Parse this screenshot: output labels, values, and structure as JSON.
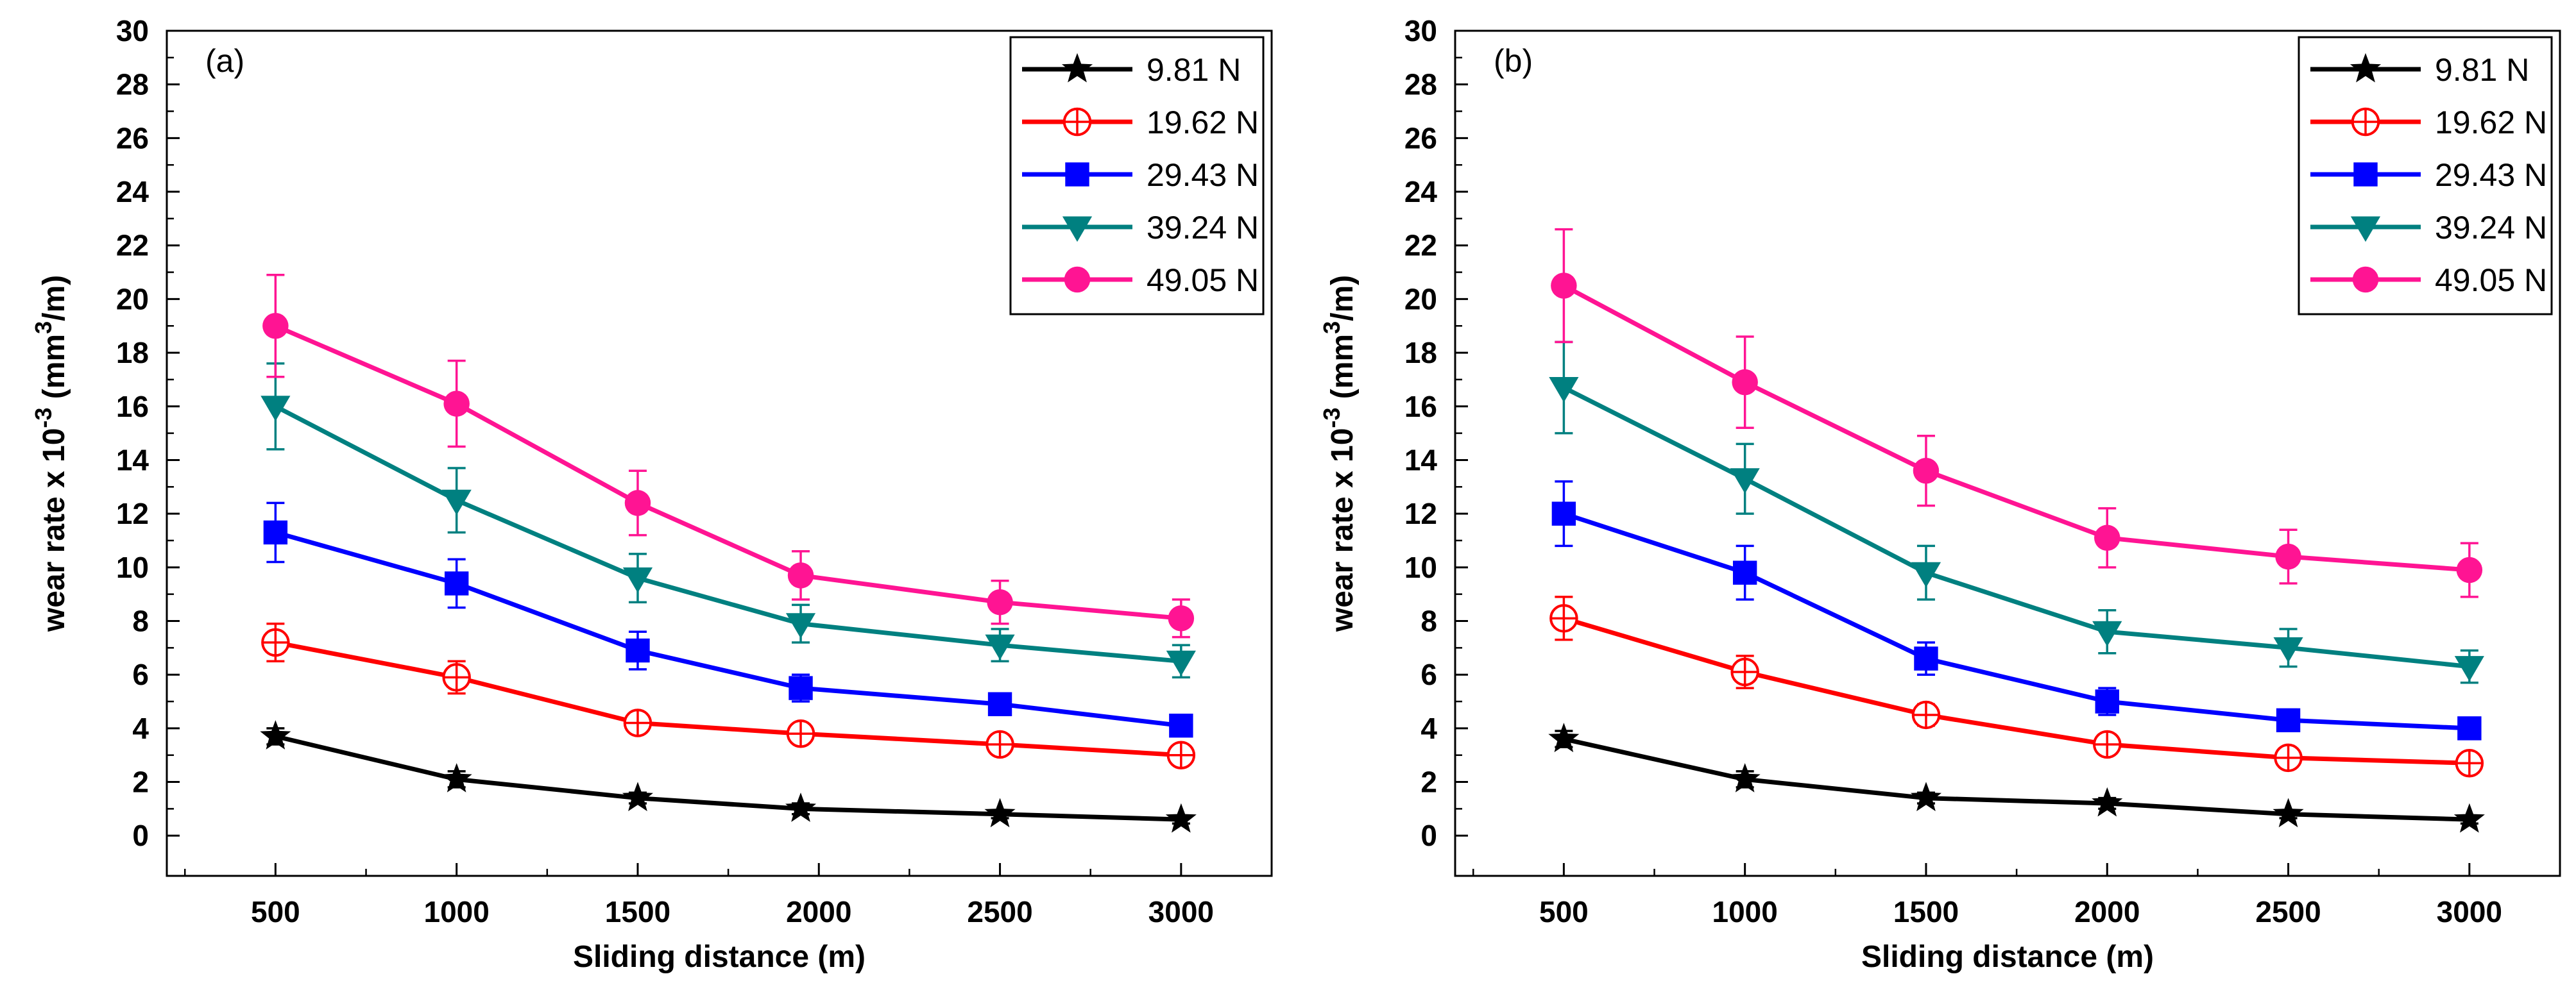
{
  "chart_data": [
    {
      "type": "line",
      "panel_label": "(a)",
      "xlabel": "Sliding distance (m)",
      "ylabel": "wear rate x 10",
      "ylabel_exponent": "-3",
      "ylabel_unit_prefix": " (mm",
      "ylabel_unit_exponent": "3",
      "ylabel_unit_suffix": "/m)",
      "xlim": [
        200,
        3250
      ],
      "ylim": [
        -1.5,
        30
      ],
      "x_ticks": [
        500,
        1000,
        1500,
        2000,
        2500,
        3000
      ],
      "y_ticks": [
        0,
        2,
        4,
        6,
        8,
        10,
        12,
        14,
        16,
        18,
        20,
        22,
        24,
        26,
        28,
        30
      ],
      "legend_position": "top-right",
      "series": [
        {
          "name": "9.81 N",
          "color": "#000000",
          "marker": "star",
          "x": [
            500,
            1000,
            1500,
            1950,
            2500,
            3000
          ],
          "values": [
            3.7,
            2.1,
            1.4,
            1.0,
            0.8,
            0.6
          ],
          "errors": [
            0.3,
            0.3,
            0.2,
            0.2,
            0.15,
            0.15
          ]
        },
        {
          "name": "19.62 N",
          "color": "#ff0000",
          "marker": "circle-open",
          "x": [
            500,
            1000,
            1500,
            1950,
            2500,
            3000
          ],
          "values": [
            7.2,
            5.9,
            4.2,
            3.8,
            3.4,
            3.0
          ],
          "errors": [
            0.7,
            0.6,
            0.3,
            0.3,
            0.2,
            0.2
          ]
        },
        {
          "name": "29.43 N",
          "color": "#0000ff",
          "marker": "square",
          "x": [
            500,
            1000,
            1500,
            1950,
            2500,
            3000
          ],
          "values": [
            11.3,
            9.4,
            6.9,
            5.5,
            4.9,
            4.1
          ],
          "errors": [
            1.1,
            0.9,
            0.7,
            0.5,
            0.4,
            0.3
          ]
        },
        {
          "name": "39.24 N",
          "color": "#008080",
          "marker": "triangle-down",
          "x": [
            500,
            1000,
            1500,
            1950,
            2500,
            3000
          ],
          "values": [
            16.0,
            12.5,
            9.6,
            7.9,
            7.1,
            6.5
          ],
          "errors": [
            1.6,
            1.2,
            0.9,
            0.7,
            0.6,
            0.6
          ]
        },
        {
          "name": "49.05 N",
          "color": "#ff1493",
          "marker": "circle",
          "x": [
            500,
            1000,
            1500,
            1950,
            2500,
            3000
          ],
          "values": [
            19.0,
            16.1,
            12.4,
            9.7,
            8.7,
            8.1
          ],
          "errors": [
            1.9,
            1.6,
            1.2,
            0.9,
            0.8,
            0.7
          ]
        }
      ]
    },
    {
      "type": "line",
      "panel_label": "(b)",
      "xlabel": "Sliding distance (m)",
      "ylabel": "wear rate x 10",
      "ylabel_exponent": "-3",
      "ylabel_unit_prefix": " (mm",
      "ylabel_unit_exponent": "3",
      "ylabel_unit_suffix": "/m)",
      "xlim": [
        200,
        3250
      ],
      "ylim": [
        -1.5,
        30
      ],
      "x_ticks": [
        500,
        1000,
        1500,
        2000,
        2500,
        3000
      ],
      "y_ticks": [
        0,
        2,
        4,
        6,
        8,
        10,
        12,
        14,
        16,
        18,
        20,
        22,
        24,
        26,
        28,
        30
      ],
      "legend_position": "top-right",
      "series": [
        {
          "name": "9.81 N",
          "color": "#000000",
          "marker": "star",
          "x": [
            500,
            1000,
            1500,
            2000,
            2500,
            3000
          ],
          "values": [
            3.6,
            2.1,
            1.4,
            1.2,
            0.8,
            0.6
          ],
          "errors": [
            0.3,
            0.3,
            0.2,
            0.2,
            0.15,
            0.15
          ]
        },
        {
          "name": "19.62 N",
          "color": "#ff0000",
          "marker": "circle-open",
          "x": [
            500,
            1000,
            1500,
            2000,
            2500,
            3000
          ],
          "values": [
            8.1,
            6.1,
            4.5,
            3.4,
            2.9,
            2.7
          ],
          "errors": [
            0.8,
            0.6,
            0.4,
            0.3,
            0.3,
            0.2
          ]
        },
        {
          "name": "29.43 N",
          "color": "#0000ff",
          "marker": "square",
          "x": [
            500,
            1000,
            1500,
            2000,
            2500,
            3000
          ],
          "values": [
            12.0,
            9.8,
            6.6,
            5.0,
            4.3,
            4.0
          ],
          "errors": [
            1.2,
            1.0,
            0.6,
            0.5,
            0.4,
            0.3
          ]
        },
        {
          "name": "39.24 N",
          "color": "#008080",
          "marker": "triangle-down",
          "x": [
            500,
            1000,
            1500,
            2000,
            2500,
            3000
          ],
          "values": [
            16.7,
            13.3,
            9.8,
            7.6,
            7.0,
            6.3
          ],
          "errors": [
            1.7,
            1.3,
            1.0,
            0.8,
            0.7,
            0.6
          ]
        },
        {
          "name": "49.05 N",
          "color": "#ff1493",
          "marker": "circle",
          "x": [
            500,
            1000,
            1500,
            2000,
            2500,
            3000
          ],
          "values": [
            20.5,
            16.9,
            13.6,
            11.1,
            10.4,
            9.9
          ],
          "errors": [
            2.1,
            1.7,
            1.3,
            1.1,
            1.0,
            1.0
          ]
        }
      ]
    }
  ]
}
